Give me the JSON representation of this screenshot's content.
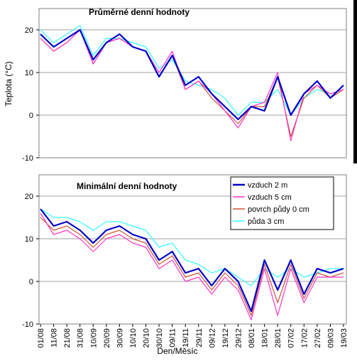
{
  "chart_data": {
    "type": "line",
    "ylabel": "Teplota (°C)",
    "xlabel": "Den/Měsíc",
    "categories": [
      "01/08",
      "11/08",
      "21/08",
      "31/08",
      "10/09",
      "20/09",
      "30/09",
      "10/10",
      "20/10",
      "30/10",
      "09/11",
      "19/11",
      "29/11",
      "09/12",
      "19/12",
      "29/12",
      "08/01",
      "18/01",
      "28/01",
      "07/02",
      "17/02",
      "27/02",
      "09/03",
      "19/03"
    ],
    "legend": [
      "vzduch 2 m",
      "vzduch 5 cm",
      "povrch půdy 0 cm",
      "půda 3 cm"
    ],
    "colors": {
      "vzduch 2 m": "#0000cc",
      "vzduch 5 cm": "#ff33cc",
      "povrch půdy 0 cm": "#cc5533",
      "půda 3 cm": "#33ffff"
    },
    "panels": [
      {
        "title": "Průměrné denní hodnoty",
        "ylim": [
          -10,
          25
        ],
        "yticks": [
          -10,
          0,
          10,
          20
        ],
        "series": [
          {
            "name": "vzduch 2 m",
            "values": [
              19,
              16,
              18,
              20,
              13,
              17,
              19,
              16,
              15,
              9,
              14,
              7,
              9,
              5,
              2,
              -1,
              2,
              1,
              9,
              0,
              5,
              8,
              4,
              7
            ]
          },
          {
            "name": "vzduch 5 cm",
            "values": [
              18,
              15,
              17,
              20,
              12,
              17,
              18,
              16,
              15,
              10,
              15,
              6,
              8,
              5,
              1,
              -3,
              2,
              3,
              10,
              -6,
              5,
              7,
              5,
              6
            ]
          },
          {
            "name": "povrch půdy 0 cm",
            "values": [
              18,
              15,
              17,
              20,
              12,
              17,
              18,
              16,
              15,
              9,
              14,
              6,
              8,
              4,
              1,
              -2,
              2,
              2,
              9,
              -5,
              4,
              7,
              4,
              6
            ]
          },
          {
            "name": "půda 3 cm",
            "values": [
              20,
              17,
              19,
              21,
              14,
              18,
              18,
              17,
              16,
              11,
              13,
              8,
              7,
              6,
              4,
              0,
              3,
              3,
              6,
              0,
              4,
              6,
              5,
              6
            ]
          }
        ]
      },
      {
        "title": "Minimální denní hodnoty",
        "ylim": [
          -10,
          25
        ],
        "yticks": [
          -10,
          0,
          10,
          20
        ],
        "series": [
          {
            "name": "vzduch 2 m",
            "values": [
              17,
              13,
              14,
              12,
              9,
              12,
              13,
              11,
              10,
              5,
              7,
              2,
              3,
              -1,
              3,
              0,
              -7,
              5,
              -2,
              5,
              -3,
              3,
              2,
              3
            ]
          },
          {
            "name": "vzduch 5 cm",
            "values": [
              16,
              11,
              12,
              10,
              7,
              10,
              11,
              9,
              8,
              3,
              5,
              0,
              1,
              -3,
              1,
              -2,
              -9,
              3,
              -8,
              3,
              -5,
              1,
              1,
              1
            ]
          },
          {
            "name": "povrch půdy 0 cm",
            "values": [
              15,
              12,
              13,
              11,
              8,
              11,
              12,
              10,
              9,
              4,
              6,
              1,
              2,
              -2,
              2,
              -1,
              -8,
              4,
              -5,
              4,
              -4,
              2,
              1,
              2
            ]
          },
          {
            "name": "půda 3 cm",
            "values": [
              17,
              15,
              15,
              14,
              12,
              14,
              14,
              13,
              12,
              8,
              9,
              5,
              4,
              2,
              3,
              1,
              -1,
              3,
              1,
              3,
              1,
              2,
              3,
              3
            ]
          }
        ]
      }
    ]
  }
}
